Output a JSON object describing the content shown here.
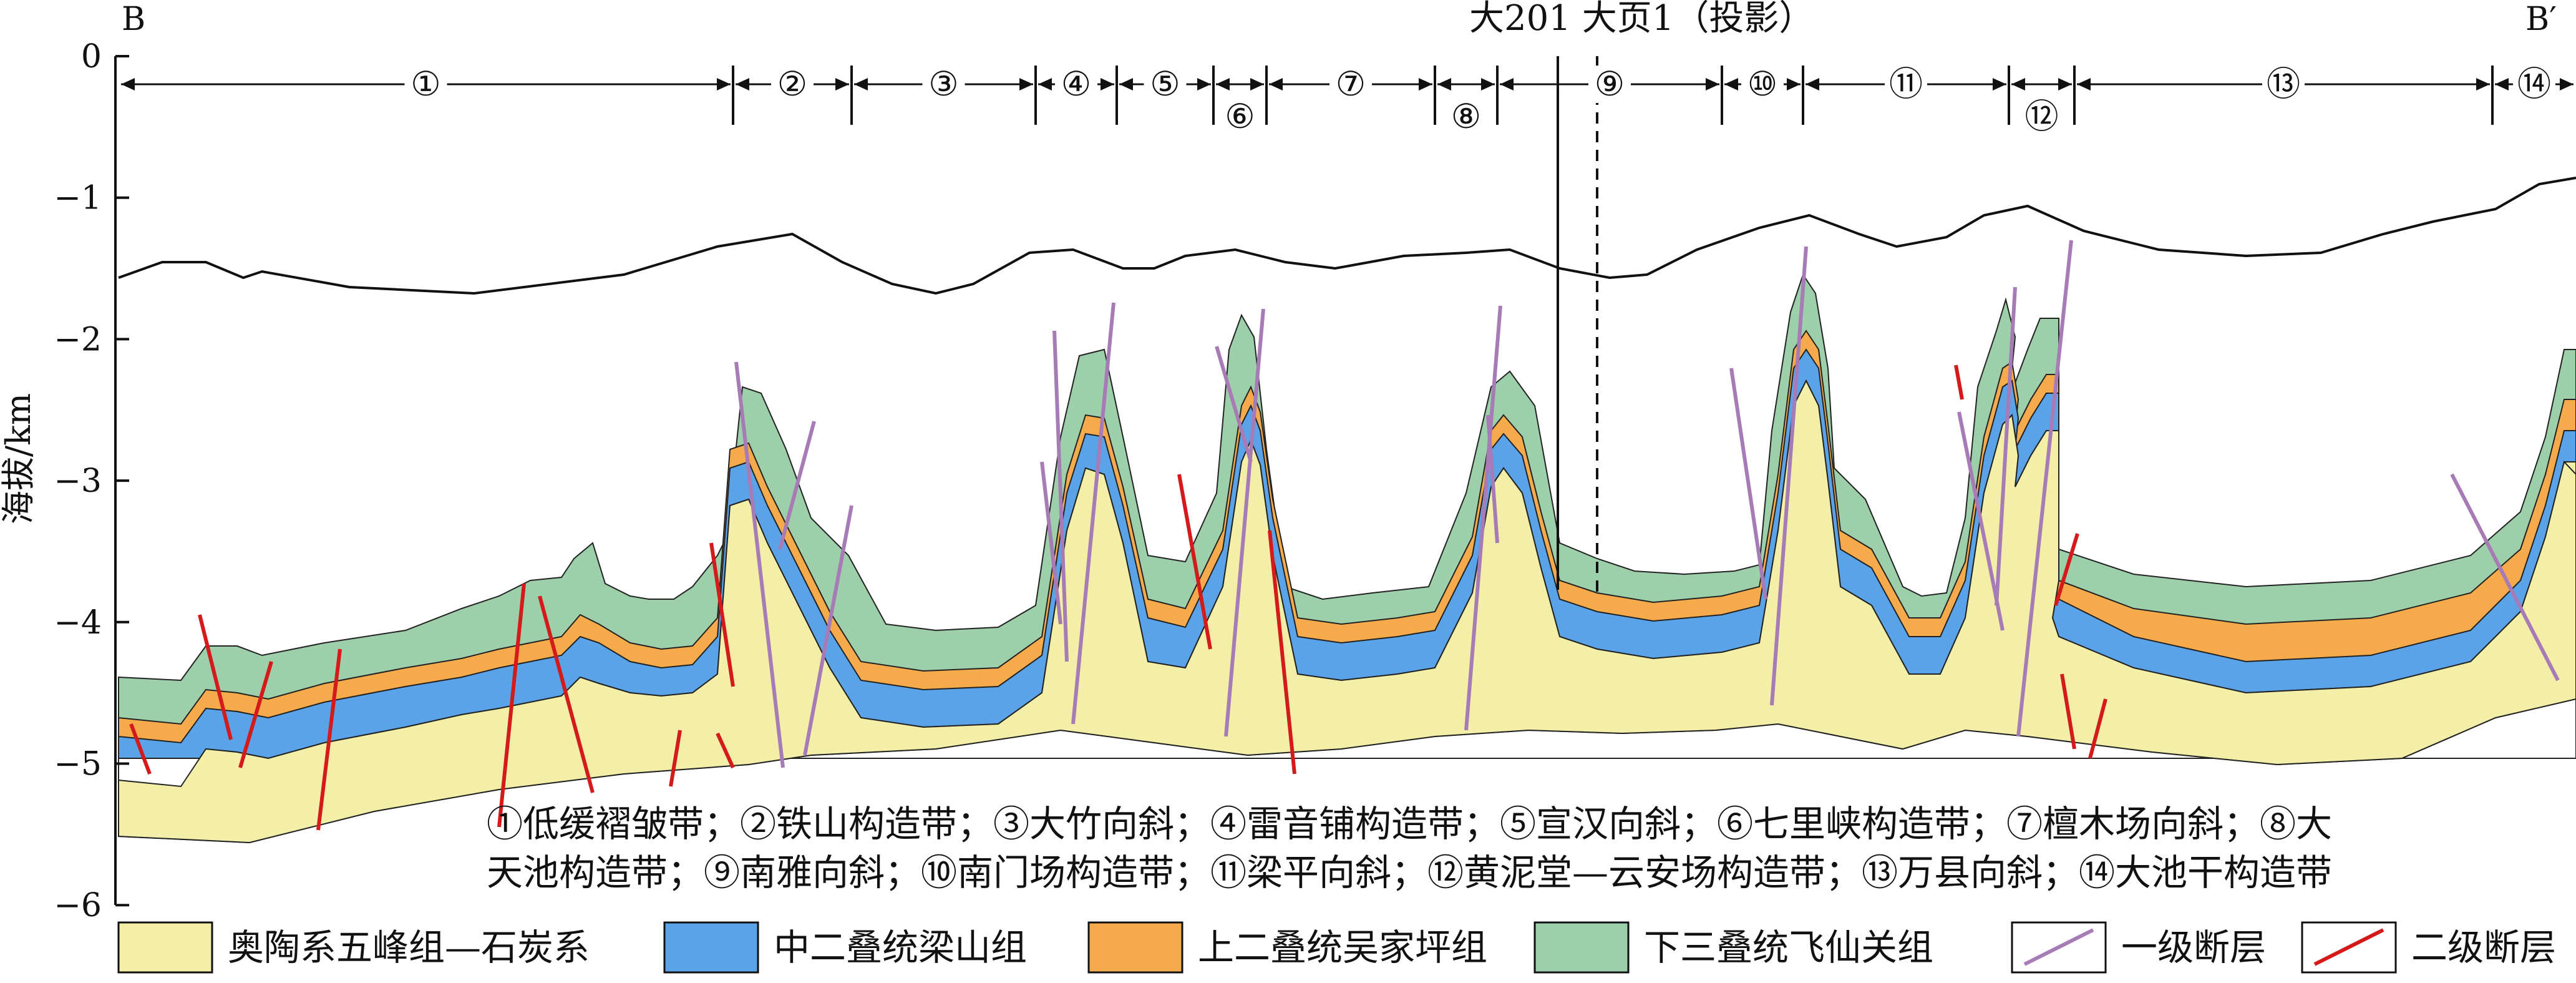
{
  "header": {
    "left_marker": "B",
    "right_marker": "B′",
    "wells": "大201 大页1（投影）"
  },
  "y_axis": {
    "label": "海拔/km",
    "ticks": [
      "0",
      "−1",
      "−2",
      "−3",
      "−4",
      "−5",
      "−6"
    ]
  },
  "zones": [
    "①",
    "②",
    "③",
    "④",
    "⑤",
    "⑥",
    "⑦",
    "⑧",
    "⑨",
    "⑩",
    "⑪",
    "⑫",
    "⑬",
    "⑭"
  ],
  "zone_descriptions": {
    "line1": "①低缓褶皱带；②铁山构造带；③大竹向斜；④雷音铺构造带；⑤宣汉向斜；⑥七里峡构造带；⑦檀木场向斜；⑧大",
    "line2": "天池构造带；⑨南雅向斜；⑩南门场构造带；⑪梁平向斜；⑫黄泥堂—云安场构造带；⑬万县向斜；⑭大池干构造带"
  },
  "legend": [
    {
      "label": "奥陶系五峰组—石炭系",
      "color": "#f3efa8"
    },
    {
      "label": "中二叠统梁山组",
      "color": "#5aa3e8"
    },
    {
      "label": "上二叠统吴家坪组",
      "color": "#f5aa4c"
    },
    {
      "label": "下三叠统飞仙关组",
      "color": "#9ecfab"
    },
    {
      "label": "一级断层",
      "color": "#a77bb5"
    },
    {
      "label": "二级断层",
      "color": "#d41a1a"
    }
  ]
}
